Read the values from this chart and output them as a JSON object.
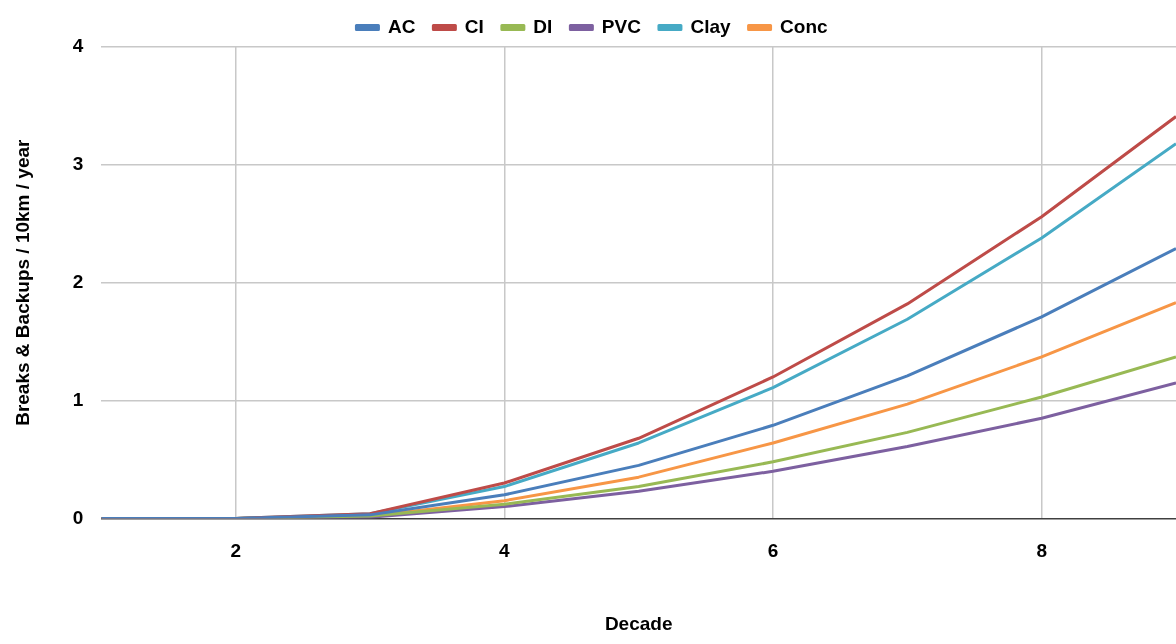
{
  "chart_data": {
    "type": "line",
    "xlabel": "Decade",
    "ylabel": "Breaks & Backups / 10km / year",
    "x": [
      1,
      2,
      3,
      4,
      5,
      6,
      7,
      8,
      9
    ],
    "series": [
      {
        "name": "AC",
        "color": "#4a7ebb",
        "values": [
          0,
          0,
          0.03,
          0.2,
          0.45,
          0.79,
          1.21,
          1.71,
          2.29
        ]
      },
      {
        "name": "CI",
        "color": "#be4b48",
        "values": [
          0,
          0,
          0.04,
          0.3,
          0.68,
          1.2,
          1.82,
          2.56,
          3.41
        ]
      },
      {
        "name": "DI",
        "color": "#98b954",
        "values": [
          0,
          0,
          0.02,
          0.12,
          0.27,
          0.48,
          0.73,
          1.03,
          1.37
        ]
      },
      {
        "name": "PVC",
        "color": "#7d60a0",
        "values": [
          0,
          0,
          0.01,
          0.1,
          0.23,
          0.4,
          0.61,
          0.85,
          1.15
        ]
      },
      {
        "name": "Clay",
        "color": "#46aac5",
        "values": [
          0,
          0,
          0.04,
          0.27,
          0.64,
          1.11,
          1.69,
          2.38,
          3.18
        ]
      },
      {
        "name": "Conc",
        "color": "#f79646",
        "values": [
          0,
          0,
          0.02,
          0.15,
          0.35,
          0.64,
          0.97,
          1.37,
          1.83
        ]
      }
    ],
    "xlim": [
      1,
      9
    ],
    "xticks": [
      2,
      4,
      6,
      8
    ],
    "ylim": [
      0,
      4
    ],
    "yticks": [
      0,
      1,
      2,
      3,
      4
    ],
    "grid": true,
    "legend": "top",
    "marker": "none",
    "line_style": "solid"
  }
}
